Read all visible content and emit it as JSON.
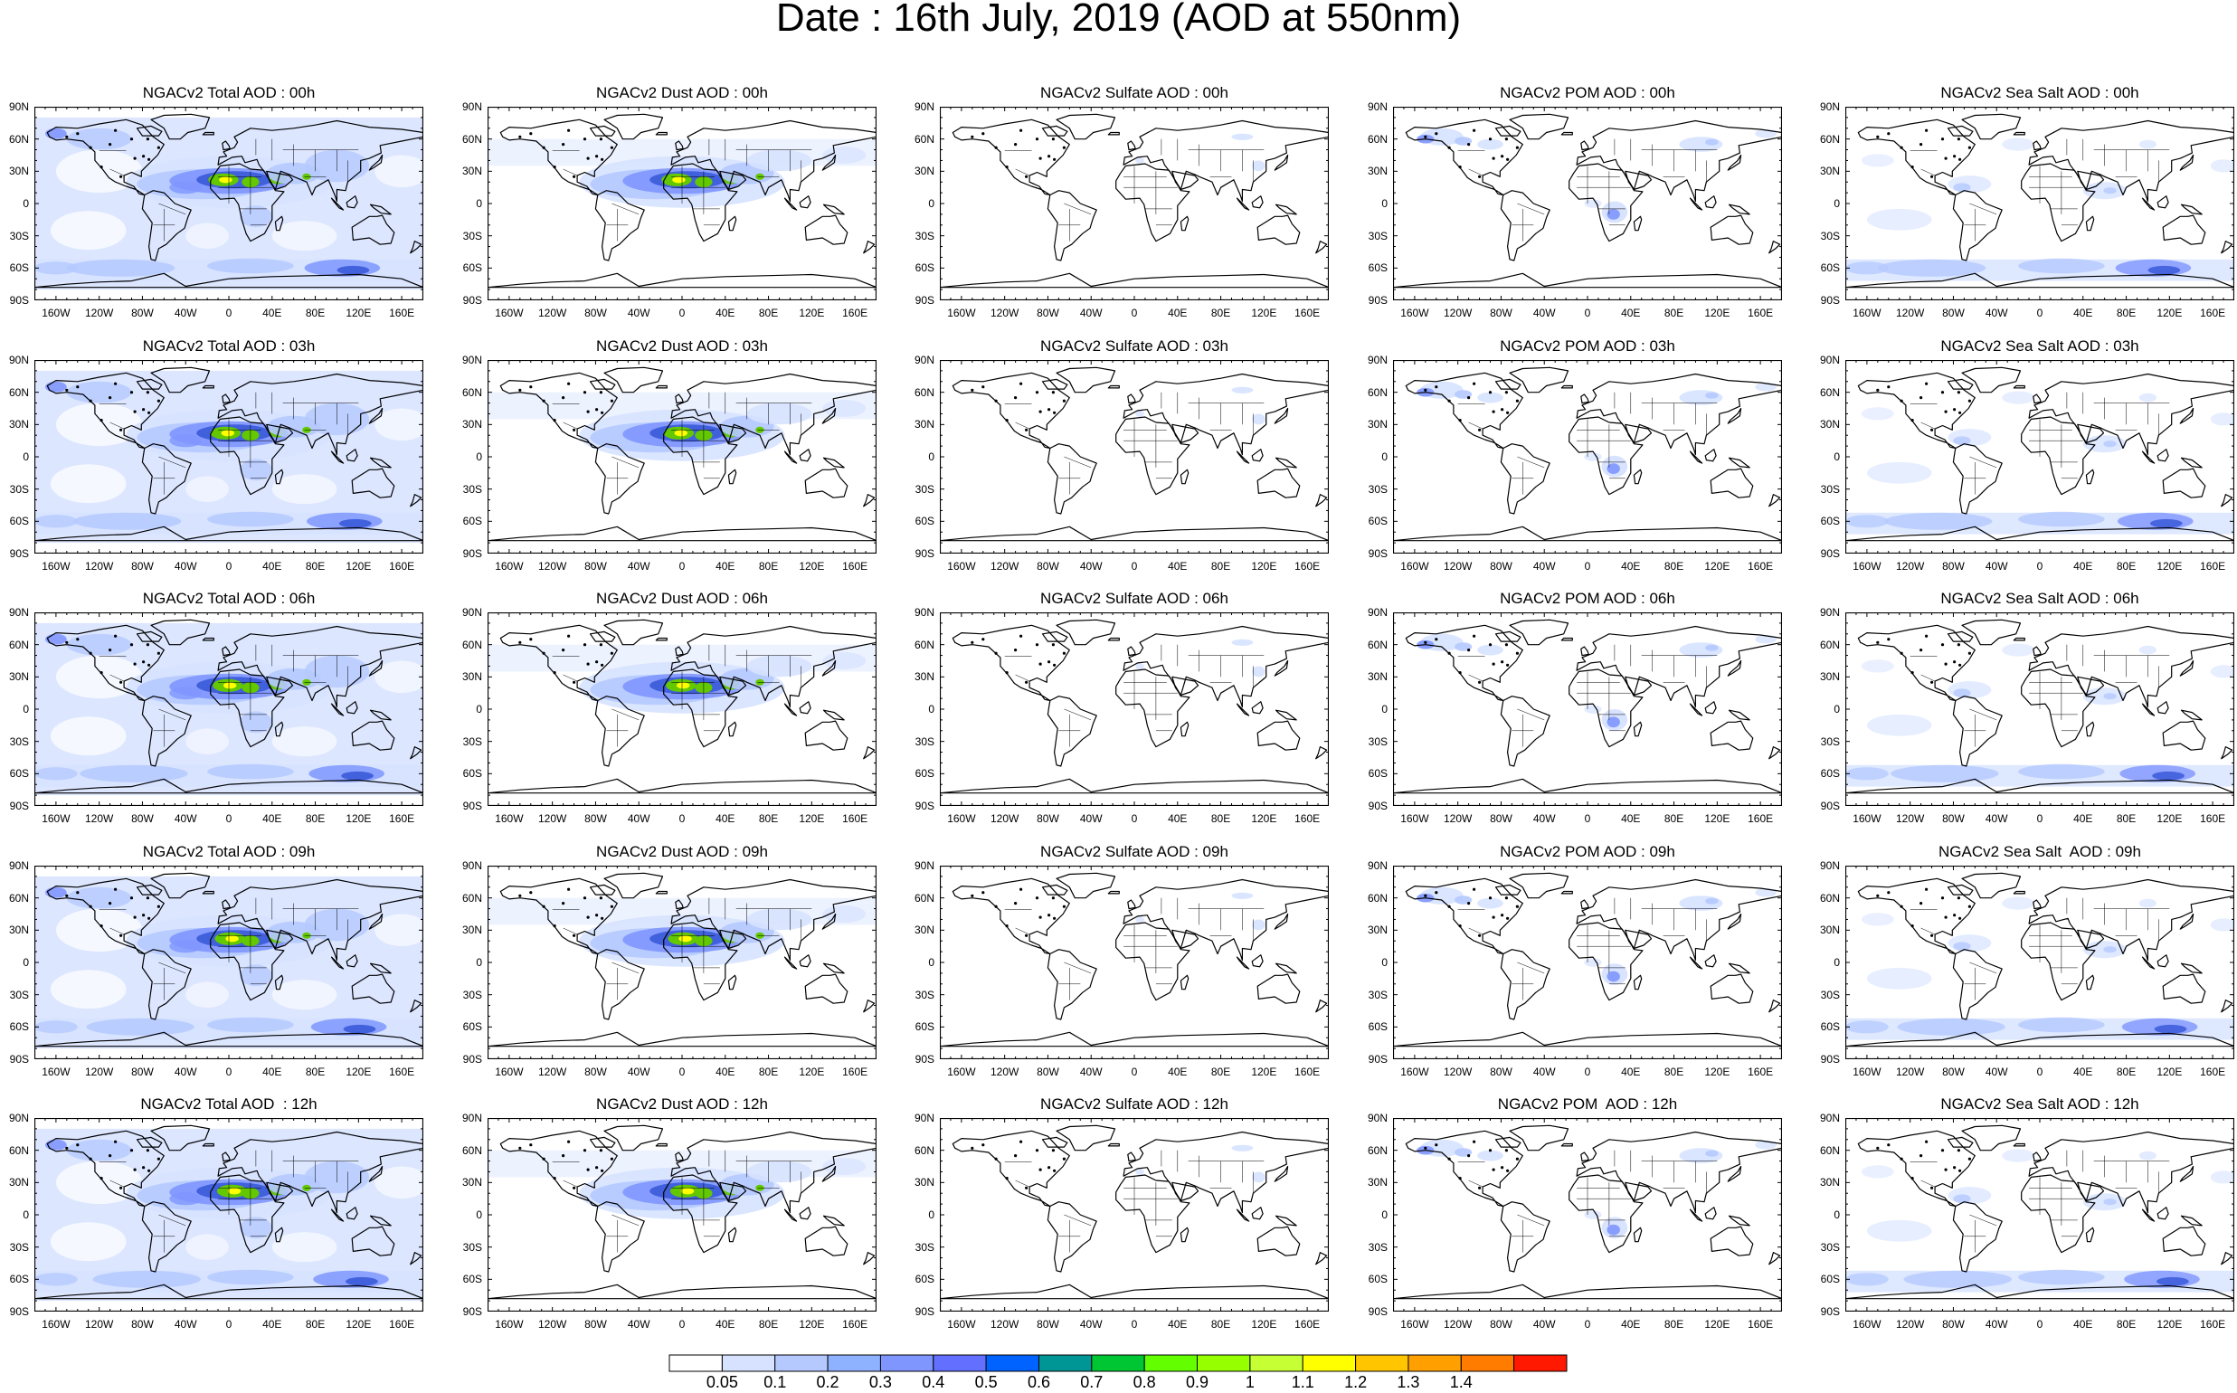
{
  "title": "Date : 16th July, 2019 (AOD at 550nm)",
  "panel_titles": [
    [
      "NGACv2 Total AOD : 00h",
      "NGACv2 Dust AOD : 00h",
      "NGACv2 Sulfate AOD : 00h",
      "NGACv2 POM AOD : 00h",
      "NGACv2 Sea Salt AOD : 00h"
    ],
    [
      "NGACv2 Total AOD : 03h",
      "NGACv2 Dust AOD : 03h",
      "NGACv2 Sulfate AOD : 03h",
      "NGACv2 POM AOD : 03h",
      "NGACv2 Sea Salt AOD : 03h"
    ],
    [
      "NGACv2 Total AOD : 06h",
      "NGACv2 Dust AOD : 06h",
      "NGACv2 Sulfate AOD : 06h",
      "NGACv2 POM AOD : 06h",
      "NGACv2 Sea Salt AOD : 06h"
    ],
    [
      "NGACv2 Total AOD : 09h",
      "NGACv2 Dust AOD : 09h",
      "NGACv2 Sulfate AOD : 09h",
      "NGACv2 POM AOD : 09h",
      "NGACv2 Sea Salt  AOD : 09h"
    ],
    [
      "NGACv2 Total AOD  : 12h",
      "NGACv2 Dust AOD : 12h",
      "NGACv2 Sulfate AOD : 12h",
      "NGACv2 POM  AOD : 12h",
      "NGACv2 Sea Salt AOD : 12h"
    ]
  ],
  "lat_labels": [
    "90N",
    "60N",
    "30N",
    "0",
    "30S",
    "60S",
    "90S"
  ],
  "lon_labels": [
    "160W",
    "120W",
    "80W",
    "40W",
    "0",
    "40E",
    "80E",
    "120E",
    "160E"
  ],
  "colorbar": {
    "labels": [
      "0.05",
      "0.1",
      "0.2",
      "0.3",
      "0.4",
      "0.5",
      "0.6",
      "0.7",
      "0.8",
      "0.9",
      "1",
      "1.1",
      "1.2",
      "1.3",
      "1.4"
    ],
    "colors": [
      "#ffffff",
      "#d6e2ff",
      "#b5c9ff",
      "#8eb2ff",
      "#7f96ff",
      "#6370ff",
      "#0063ff",
      "#009696",
      "#00c633",
      "#63ff00",
      "#96ff00",
      "#c6ff33",
      "#ffff00",
      "#ffc600",
      "#ffa000",
      "#ff7c00",
      "#ff1900"
    ]
  },
  "field_colors": {
    "light": "#d6e2ff",
    "medium": "#b5c9ff",
    "strong": "#7f96ff",
    "deep": "#3a5ad8",
    "green": "#63c800",
    "yellow": "#ffff00",
    "coast": "#000000"
  }
}
